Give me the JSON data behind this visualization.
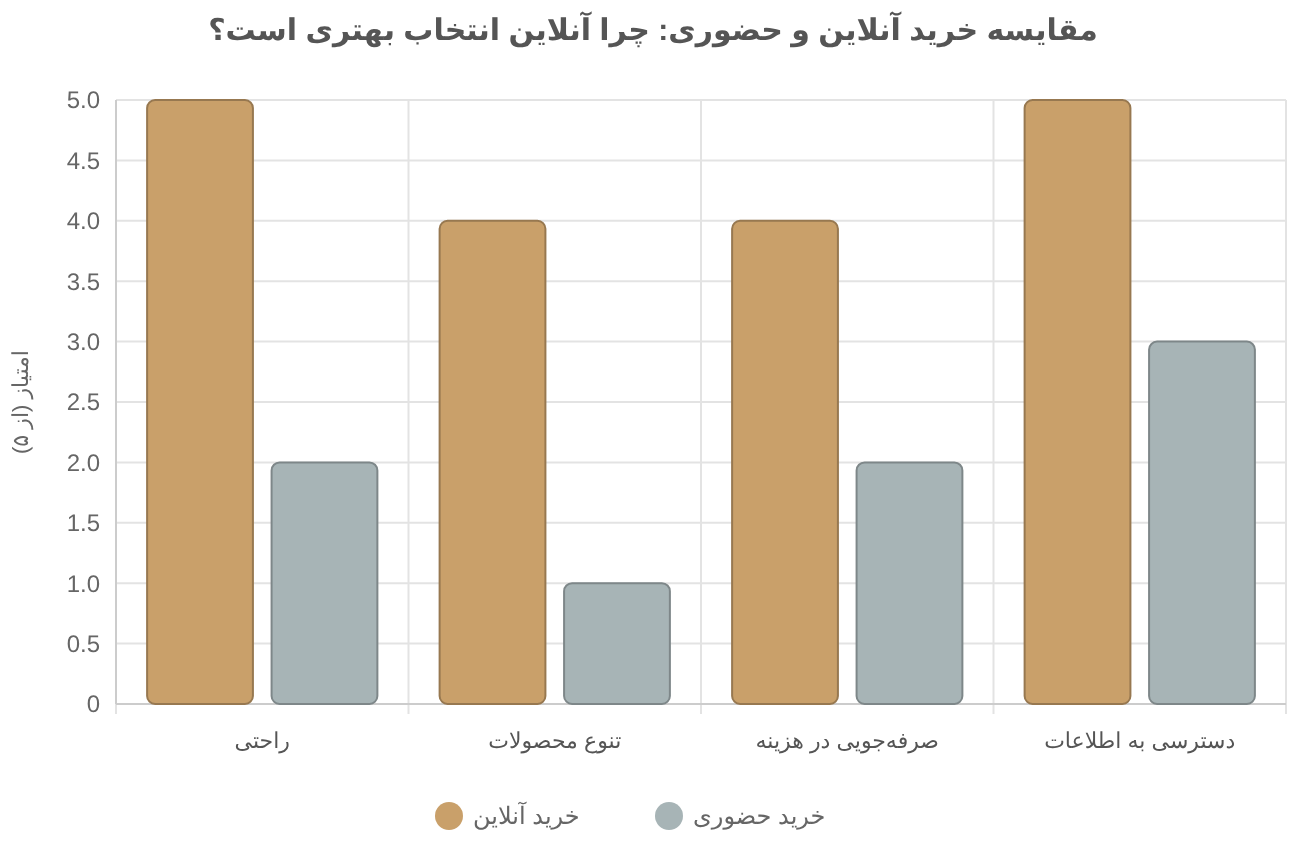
{
  "chart_data": {
    "type": "bar",
    "title": "مقایسه خرید آنلاین و حضوری: چرا آنلاین انتخاب بهتری است؟",
    "ylabel": "امتیاز (از ۵)",
    "categories": [
      "راحتی",
      "تنوع محصولات",
      "صرفه‌جویی در هزینه",
      "دسترسی به اطلاعات"
    ],
    "series": [
      {
        "name": "خرید آنلاین",
        "color": "#c9a06a",
        "values": [
          5,
          4,
          4,
          5
        ]
      },
      {
        "name": "خرید حضوری",
        "color": "#a7b4b6",
        "values": [
          2,
          1,
          2,
          3
        ]
      }
    ],
    "ylim": [
      0,
      5
    ],
    "yticks": [
      {
        "value": 0,
        "label": "0"
      },
      {
        "value": 0.5,
        "label": "0.5"
      },
      {
        "value": 1,
        "label": "1.0"
      },
      {
        "value": 1.5,
        "label": "1.5"
      },
      {
        "value": 2,
        "label": "2.0"
      },
      {
        "value": 2.5,
        "label": "2.5"
      },
      {
        "value": 3,
        "label": "3.0"
      },
      {
        "value": 3.5,
        "label": "3.5"
      },
      {
        "value": 4,
        "label": "4.0"
      },
      {
        "value": 4.5,
        "label": "4.5"
      },
      {
        "value": 5,
        "label": "5.0"
      }
    ],
    "grid": true,
    "legend": "bottom"
  }
}
